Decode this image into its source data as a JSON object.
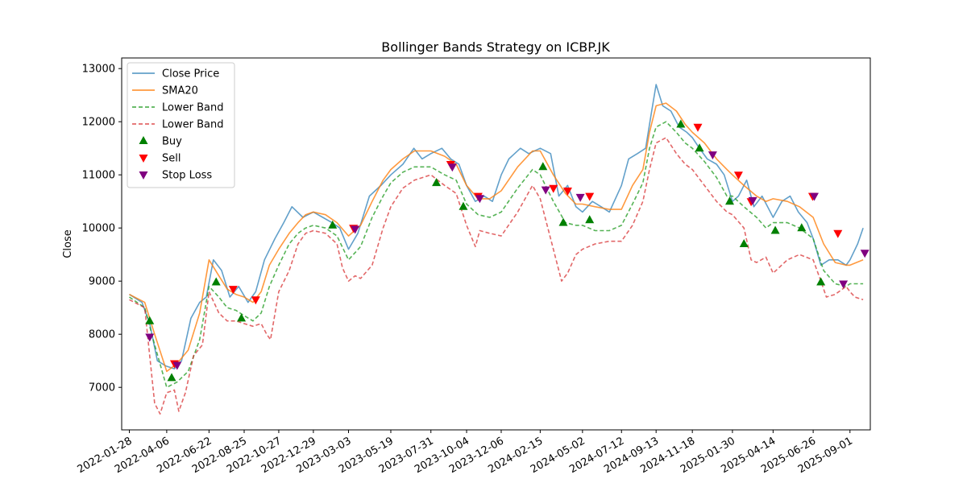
{
  "chart_data": {
    "type": "line",
    "title": "Bollinger Bands Strategy on ICBP.JK",
    "xlabel": "",
    "ylabel": "Close",
    "x_range": [
      "2022-01-14",
      "2025-10-08"
    ],
    "ylim": [
      6200,
      13200
    ],
    "x_ticks": [
      "2022-01-28",
      "2022-04-06",
      "2022-06-22",
      "2022-08-25",
      "2022-10-27",
      "2022-12-29",
      "2023-03-03",
      "2023-05-19",
      "2023-07-31",
      "2023-10-04",
      "2023-12-06",
      "2024-02-15",
      "2024-05-02",
      "2024-07-12",
      "2024-09-13",
      "2024-11-18",
      "2025-01-30",
      "2025-04-14",
      "2025-06-26",
      "2025-09-01"
    ],
    "y_ticks": [
      7000,
      8000,
      9000,
      10000,
      11000,
      12000,
      13000
    ],
    "legend_position": "top-left",
    "grid": false,
    "colors": {
      "close": "#1f77b4",
      "sma": "#ff7f0e",
      "upper": "#2ca02c",
      "lower": "#d62728",
      "buy": "#008000",
      "sell": "#ff0000",
      "stop": "#800080"
    },
    "series": [
      {
        "name": "Close Price",
        "key": "close",
        "style": "solid",
        "alpha": 0.7,
        "x": [
          "2022-01-28",
          "2022-02-20",
          "2022-03-06",
          "2022-03-20",
          "2022-04-05",
          "2022-04-20",
          "2022-05-03",
          "2022-05-20",
          "2022-06-05",
          "2022-06-17",
          "2022-06-30",
          "2022-07-15",
          "2022-07-30",
          "2022-08-15",
          "2022-09-01",
          "2022-09-15",
          "2022-10-01",
          "2022-10-20",
          "2022-11-05",
          "2022-11-20",
          "2022-12-10",
          "2022-12-29",
          "2023-01-15",
          "2023-02-01",
          "2023-02-15",
          "2023-03-03",
          "2023-03-20",
          "2023-04-10",
          "2023-05-01",
          "2023-05-19",
          "2023-06-10",
          "2023-06-30",
          "2023-07-15",
          "2023-07-31",
          "2023-08-20",
          "2023-09-05",
          "2023-09-20",
          "2023-10-04",
          "2023-10-20",
          "2023-11-05",
          "2023-11-20",
          "2023-12-06",
          "2023-12-20",
          "2024-01-10",
          "2024-01-25",
          "2024-02-15",
          "2024-03-05",
          "2024-03-20",
          "2024-04-05",
          "2024-04-20",
          "2024-05-02",
          "2024-05-20",
          "2024-06-05",
          "2024-06-20",
          "2024-07-12",
          "2024-07-25",
          "2024-08-10",
          "2024-08-25",
          "2024-09-05",
          "2024-09-13",
          "2024-09-25",
          "2024-10-10",
          "2024-10-25",
          "2024-11-08",
          "2024-11-18",
          "2024-12-01",
          "2024-12-15",
          "2025-01-01",
          "2025-01-15",
          "2025-01-30",
          "2025-02-10",
          "2025-02-25",
          "2025-03-10",
          "2025-03-25",
          "2025-04-14",
          "2025-04-30",
          "2025-05-15",
          "2025-05-30",
          "2025-06-15",
          "2025-06-26",
          "2025-07-10",
          "2025-07-25",
          "2025-08-10",
          "2025-08-25",
          "2025-09-01",
          "2025-09-15",
          "2025-09-25"
        ],
        "values": [
          8750,
          8600,
          8200,
          7500,
          7400,
          7350,
          7500,
          8300,
          8600,
          8700,
          9400,
          9200,
          8700,
          8900,
          8600,
          8800,
          9400,
          9800,
          10100,
          10400,
          10200,
          10300,
          10200,
          10100,
          10000,
          9600,
          9900,
          10600,
          10800,
          11000,
          11200,
          11500,
          11300,
          11400,
          11500,
          11300,
          11200,
          10800,
          10500,
          10600,
          10500,
          11000,
          11300,
          11500,
          11400,
          11500,
          11400,
          10600,
          10800,
          10400,
          10300,
          10500,
          10400,
          10300,
          10800,
          11300,
          11400,
          11500,
          12200,
          12700,
          12300,
          12200,
          11900,
          11800,
          11700,
          11500,
          11300,
          11200,
          11000,
          10500,
          10600,
          10900,
          10400,
          10600,
          10200,
          10500,
          10600,
          10300,
          10100,
          9800,
          9300,
          9400,
          9400,
          9300,
          9400,
          9700,
          10000
        ]
      },
      {
        "name": "SMA20",
        "key": "sma",
        "style": "solid",
        "alpha": 0.8,
        "x": [
          "2022-01-28",
          "2022-02-25",
          "2022-03-15",
          "2022-04-06",
          "2022-04-25",
          "2022-05-15",
          "2022-06-05",
          "2022-06-22",
          "2022-07-10",
          "2022-07-25",
          "2022-08-10",
          "2022-08-25",
          "2022-09-10",
          "2022-09-25",
          "2022-10-10",
          "2022-10-27",
          "2022-11-15",
          "2022-12-01",
          "2022-12-15",
          "2022-12-29",
          "2023-01-20",
          "2023-02-10",
          "2023-03-03",
          "2023-03-25",
          "2023-04-15",
          "2023-05-05",
          "2023-05-19",
          "2023-06-10",
          "2023-07-01",
          "2023-07-31",
          "2023-08-25",
          "2023-09-15",
          "2023-10-04",
          "2023-10-25",
          "2023-11-15",
          "2023-12-06",
          "2024-01-05",
          "2024-02-01",
          "2024-02-15",
          "2024-03-10",
          "2024-04-01",
          "2024-04-20",
          "2024-05-02",
          "2024-05-25",
          "2024-06-20",
          "2024-07-12",
          "2024-08-01",
          "2024-08-20",
          "2024-09-01",
          "2024-09-13",
          "2024-10-01",
          "2024-10-20",
          "2024-11-05",
          "2024-11-18",
          "2024-12-10",
          "2025-01-01",
          "2025-01-20",
          "2025-01-30",
          "2025-02-20",
          "2025-03-15",
          "2025-04-01",
          "2025-04-14",
          "2025-05-10",
          "2025-06-01",
          "2025-06-26",
          "2025-07-15",
          "2025-08-05",
          "2025-08-25",
          "2025-09-01",
          "2025-09-25"
        ],
        "values": [
          8750,
          8600,
          8000,
          7300,
          7450,
          7700,
          8400,
          9400,
          9100,
          8850,
          8750,
          8700,
          8600,
          8800,
          9300,
          9600,
          9900,
          10100,
          10250,
          10300,
          10250,
          10100,
          9850,
          10050,
          10500,
          10900,
          11100,
          11300,
          11450,
          11450,
          11350,
          11200,
          10800,
          10550,
          10550,
          10700,
          11150,
          11450,
          11450,
          11000,
          10650,
          10450,
          10450,
          10400,
          10350,
          10350,
          10800,
          11100,
          11800,
          12300,
          12350,
          12200,
          11950,
          11800,
          11600,
          11300,
          11100,
          11000,
          10800,
          10600,
          10500,
          10550,
          10500,
          10400,
          10200,
          9700,
          9350,
          9300,
          9300,
          9400
        ]
      },
      {
        "name": "Lower Band",
        "key": "upper",
        "style": "dashed",
        "alpha": 0.8,
        "x": [
          "2022-01-28",
          "2022-02-25",
          "2022-03-15",
          "2022-04-06",
          "2022-04-25",
          "2022-05-15",
          "2022-06-05",
          "2022-06-22",
          "2022-07-10",
          "2022-07-25",
          "2022-08-10",
          "2022-08-25",
          "2022-09-10",
          "2022-09-25",
          "2022-10-10",
          "2022-10-27",
          "2022-11-15",
          "2022-12-01",
          "2022-12-15",
          "2022-12-29",
          "2023-01-20",
          "2023-02-10",
          "2023-03-03",
          "2023-03-25",
          "2023-04-15",
          "2023-05-05",
          "2023-05-19",
          "2023-06-10",
          "2023-07-01",
          "2023-07-31",
          "2023-08-25",
          "2023-09-15",
          "2023-10-04",
          "2023-10-25",
          "2023-11-15",
          "2023-12-06",
          "2024-01-05",
          "2024-02-01",
          "2024-02-15",
          "2024-03-10",
          "2024-04-01",
          "2024-04-20",
          "2024-05-02",
          "2024-05-25",
          "2024-06-20",
          "2024-07-12",
          "2024-08-01",
          "2024-08-20",
          "2024-09-01",
          "2024-09-13",
          "2024-10-01",
          "2024-10-20",
          "2024-11-05",
          "2024-11-18",
          "2024-12-10",
          "2025-01-01",
          "2025-01-20",
          "2025-01-30",
          "2025-02-20",
          "2025-03-15",
          "2025-04-01",
          "2025-04-14",
          "2025-05-10",
          "2025-06-01",
          "2025-06-26",
          "2025-07-15",
          "2025-08-05",
          "2025-08-25",
          "2025-09-01",
          "2025-09-25"
        ],
        "values": [
          8700,
          8500,
          7800,
          7000,
          7100,
          7300,
          7900,
          8900,
          8700,
          8500,
          8450,
          8350,
          8250,
          8400,
          8900,
          9300,
          9700,
          9900,
          10000,
          10050,
          10000,
          9850,
          9400,
          9650,
          10200,
          10600,
          10850,
          11050,
          11150,
          11150,
          11000,
          10900,
          10450,
          10250,
          10200,
          10300,
          10750,
          11100,
          11000,
          10500,
          10100,
          10050,
          10050,
          9950,
          9950,
          10050,
          10450,
          10850,
          11500,
          11900,
          12000,
          11800,
          11600,
          11500,
          11250,
          10950,
          10600,
          10600,
          10400,
          10200,
          10000,
          10100,
          10100,
          10000,
          9800,
          9200,
          8950,
          8900,
          8950,
          8950
        ]
      },
      {
        "name": "Lower Band",
        "key": "lower",
        "style": "dashed",
        "alpha": 0.7,
        "x": [
          "2022-01-28",
          "2022-02-25",
          "2022-03-08",
          "2022-03-15",
          "2022-03-25",
          "2022-04-06",
          "2022-04-20",
          "2022-04-28",
          "2022-05-10",
          "2022-05-25",
          "2022-06-10",
          "2022-06-22",
          "2022-07-10",
          "2022-07-25",
          "2022-08-10",
          "2022-08-25",
          "2022-09-10",
          "2022-09-25",
          "2022-10-05",
          "2022-10-12",
          "2022-10-27",
          "2022-11-15",
          "2022-12-01",
          "2022-12-15",
          "2022-12-29",
          "2023-01-20",
          "2023-02-10",
          "2023-02-20",
          "2023-03-03",
          "2023-03-15",
          "2023-03-25",
          "2023-04-15",
          "2023-05-05",
          "2023-05-19",
          "2023-06-10",
          "2023-07-01",
          "2023-07-31",
          "2023-08-25",
          "2023-09-15",
          "2023-10-04",
          "2023-10-20",
          "2023-10-28",
          "2023-11-15",
          "2023-12-06",
          "2024-01-05",
          "2024-02-01",
          "2024-02-15",
          "2024-03-10",
          "2024-03-25",
          "2024-04-05",
          "2024-04-20",
          "2024-05-02",
          "2024-05-25",
          "2024-06-20",
          "2024-07-12",
          "2024-08-01",
          "2024-08-20",
          "2024-09-01",
          "2024-09-13",
          "2024-10-01",
          "2024-10-20",
          "2024-11-05",
          "2024-11-18",
          "2024-12-10",
          "2025-01-01",
          "2025-01-20",
          "2025-01-30",
          "2025-02-20",
          "2025-03-05",
          "2025-03-15",
          "2025-04-01",
          "2025-04-14",
          "2025-05-10",
          "2025-06-01",
          "2025-06-26",
          "2025-07-10",
          "2025-07-20",
          "2025-08-05",
          "2025-08-25",
          "2025-09-01",
          "2025-09-10",
          "2025-09-25"
        ],
        "values": [
          8650,
          8500,
          7400,
          6700,
          6500,
          6900,
          6950,
          6550,
          6900,
          7600,
          7800,
          8800,
          8400,
          8250,
          8250,
          8200,
          8150,
          8200,
          8000,
          7900,
          8800,
          9200,
          9700,
          9900,
          9950,
          9900,
          9700,
          9250,
          9000,
          9100,
          9050,
          9300,
          10000,
          10400,
          10750,
          10900,
          11000,
          10800,
          10650,
          10050,
          9650,
          9950,
          9900,
          9850,
          10300,
          10800,
          10550,
          9600,
          9000,
          9150,
          9500,
          9600,
          9700,
          9750,
          9750,
          10050,
          10500,
          11100,
          11600,
          11700,
          11400,
          11200,
          11100,
          10800,
          10500,
          10300,
          10250,
          10000,
          9400,
          9350,
          9450,
          9150,
          9400,
          9500,
          9400,
          9000,
          8700,
          8750,
          8900,
          8800,
          8700,
          8650
        ]
      }
    ],
    "markers": {
      "buy": {
        "name": "Buy",
        "x": [
          "2022-03-06",
          "2022-04-15",
          "2022-07-05",
          "2022-08-20",
          "2023-02-02",
          "2023-08-10",
          "2023-09-28",
          "2024-02-20",
          "2024-03-28",
          "2024-05-15",
          "2024-10-28",
          "2024-12-01",
          "2025-01-25",
          "2025-02-20",
          "2025-04-18",
          "2025-06-05",
          "2025-07-10"
        ],
        "values": [
          8250,
          7180,
          8980,
          8300,
          10050,
          10850,
          10400,
          11150,
          10100,
          10150,
          11950,
          11500,
          10500,
          9700,
          9950,
          10000,
          8980
        ]
      },
      "sell": {
        "name": "Sell",
        "x": [
          "2022-04-20",
          "2022-08-05",
          "2022-09-15",
          "2023-03-12",
          "2023-09-05",
          "2023-10-25",
          "2024-03-10",
          "2024-04-05",
          "2024-05-15",
          "2024-11-28",
          "2025-02-10",
          "2025-03-05",
          "2025-06-25",
          "2025-08-10"
        ],
        "values": [
          7450,
          8850,
          8650,
          10000,
          11200,
          10600,
          10750,
          10700,
          10600,
          11900,
          11000,
          10500,
          10600,
          9900
        ]
      },
      "stop": {
        "name": "Stop Loss",
        "x": [
          "2022-03-06",
          "2022-04-25",
          "2023-03-15",
          "2023-09-08",
          "2023-10-28",
          "2024-02-25",
          "2024-04-28",
          "2024-12-25",
          "2025-03-08",
          "2025-06-28",
          "2025-08-20",
          "2025-09-28"
        ],
        "values": [
          7950,
          7420,
          9980,
          11150,
          10560,
          10720,
          10580,
          11380,
          10520,
          10600,
          8950,
          9530
        ]
      }
    }
  }
}
